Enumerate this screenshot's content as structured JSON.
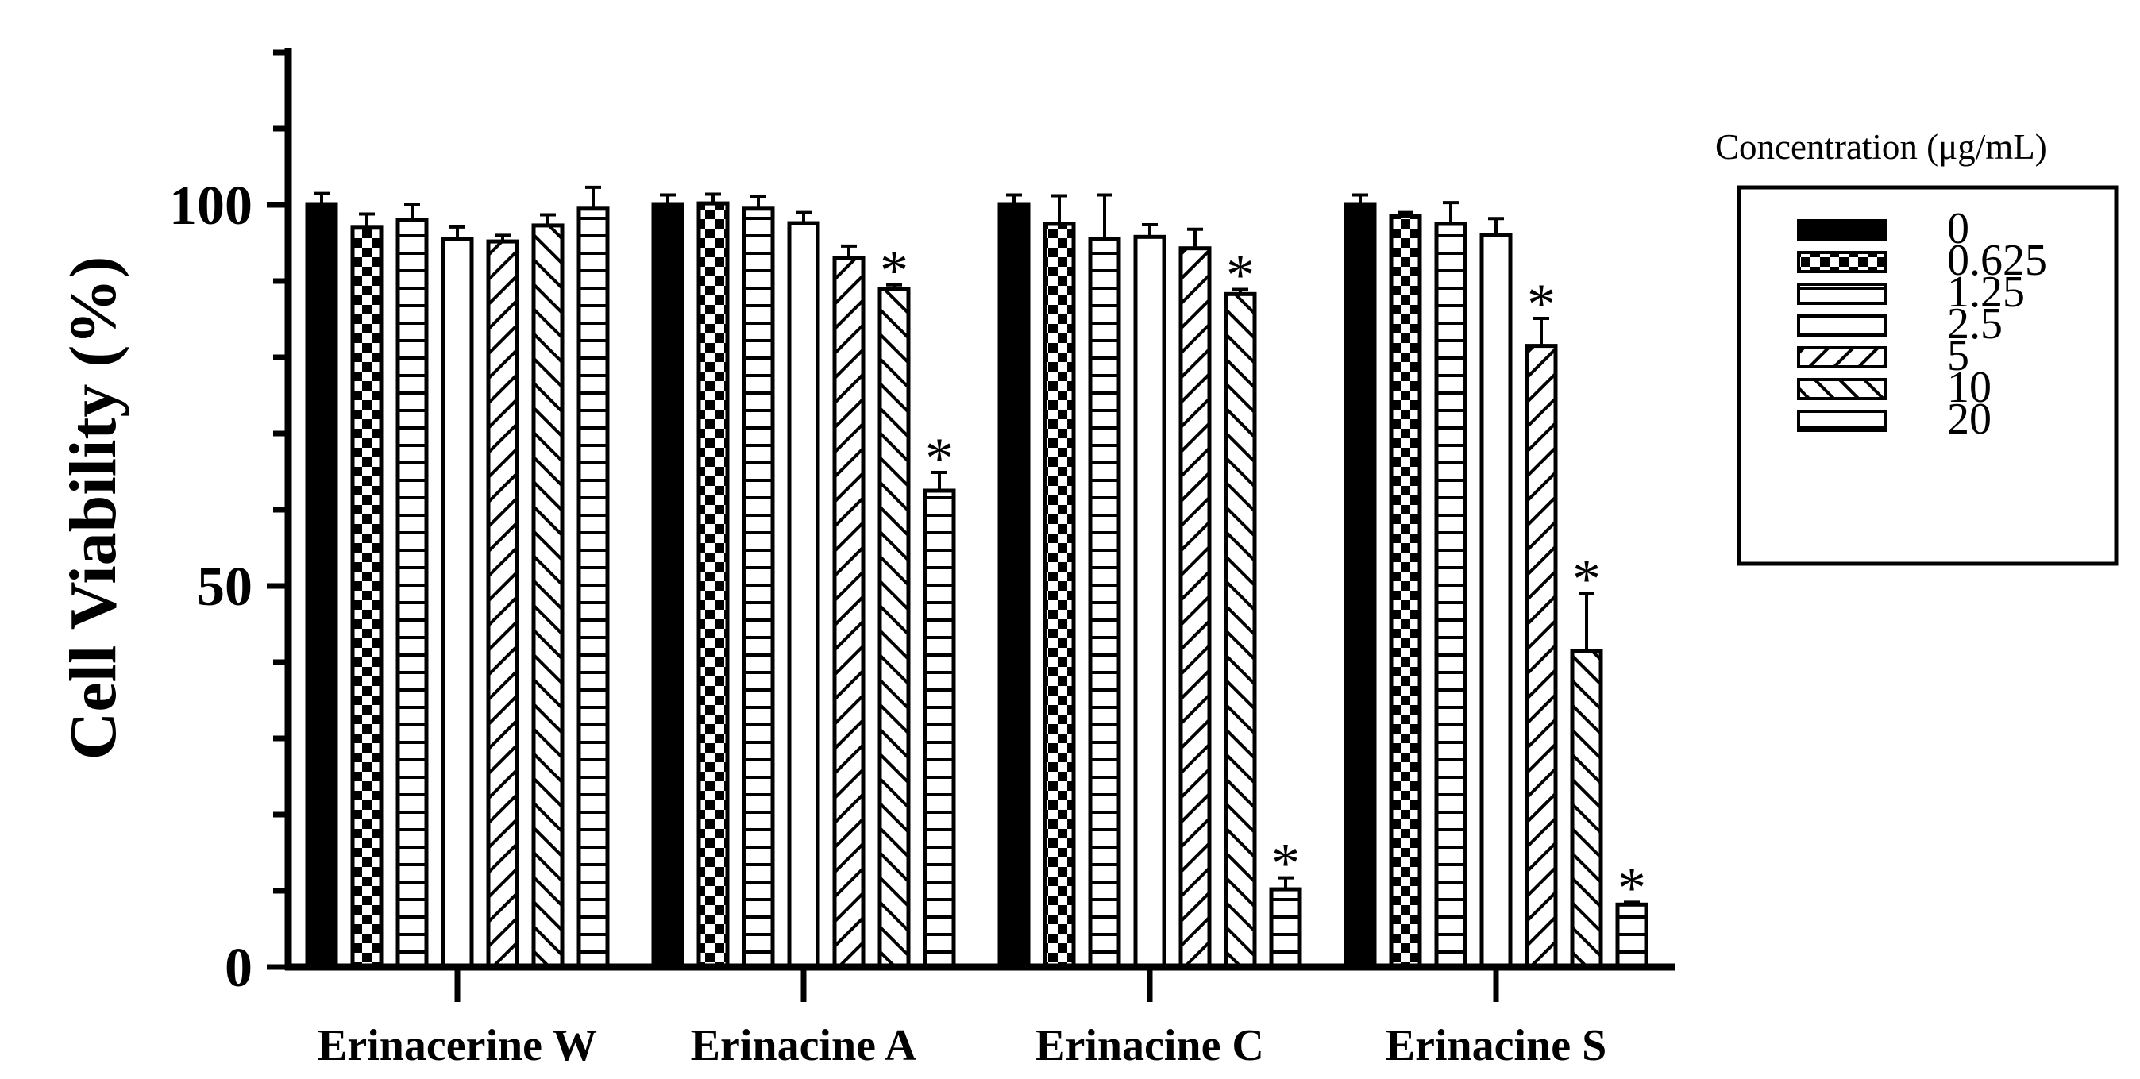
{
  "chart_data": {
    "type": "bar",
    "title": "",
    "xlabel": "",
    "ylabel": "Cell Viability (%)",
    "ylim": [
      0,
      120
    ],
    "yticks": [
      "0",
      "50",
      "100"
    ],
    "grid": false,
    "legend_position": "right",
    "legend_title": "Concentration (μg/mL)",
    "categories": [
      "Erinacerine W",
      "Erinacine A",
      "Erinacine C",
      "Erinacine S"
    ],
    "significance_marker": "*",
    "series": [
      {
        "name": "0",
        "pattern": "solid",
        "values": [
          100,
          100,
          100,
          100
        ],
        "errors": [
          1.5,
          1.3,
          1.3,
          1.3
        ],
        "significant": [
          false,
          false,
          false,
          false
        ]
      },
      {
        "name": "0.625",
        "pattern": "checker",
        "values": [
          97,
          100.2,
          97.5,
          98.5
        ],
        "errors": [
          1.8,
          1.2,
          3.7,
          0.5
        ],
        "significant": [
          false,
          false,
          false,
          false
        ]
      },
      {
        "name": "1.25",
        "pattern": "hlines",
        "values": [
          98,
          99.5,
          95.5,
          97.5
        ],
        "errors": [
          2.0,
          1.6,
          5.8,
          2.8
        ],
        "significant": [
          false,
          false,
          false,
          false
        ]
      },
      {
        "name": "2.5",
        "pattern": "open",
        "values": [
          95.5,
          97.6,
          95.8,
          96
        ],
        "errors": [
          1.6,
          1.4,
          1.6,
          2.2
        ],
        "significant": [
          false,
          false,
          false,
          false
        ]
      },
      {
        "name": "5",
        "pattern": "diag-right",
        "values": [
          95.2,
          93,
          94.3,
          81.5
        ],
        "errors": [
          0.8,
          1.6,
          2.5,
          3.6
        ],
        "significant": [
          false,
          false,
          false,
          true
        ]
      },
      {
        "name": "10",
        "pattern": "diag-left",
        "values": [
          97.3,
          89,
          88.3,
          41.5
        ],
        "errors": [
          1.4,
          0.5,
          0.6,
          7.5
        ],
        "significant": [
          false,
          true,
          true,
          true
        ]
      },
      {
        "name": "20",
        "pattern": "hlines",
        "values": [
          99.5,
          62.5,
          10.2,
          8.2
        ],
        "errors": [
          2.8,
          2.4,
          1.5,
          0.3
        ],
        "significant": [
          false,
          true,
          true,
          true
        ]
      }
    ]
  }
}
